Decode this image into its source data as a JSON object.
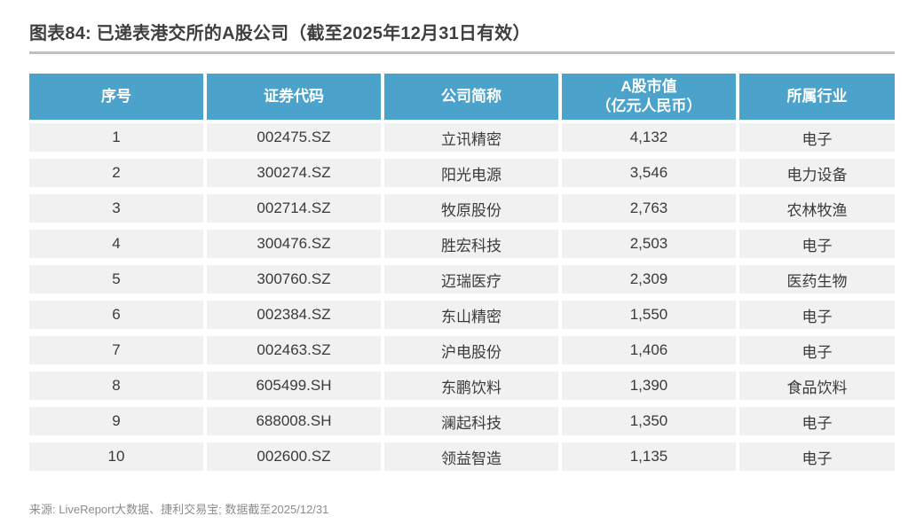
{
  "title": "图表84: 已递表港交所的A股公司（截至2025年12月31日有效）",
  "table": {
    "headers": [
      {
        "label": "序号"
      },
      {
        "label": "证券代码"
      },
      {
        "label": "公司简称"
      },
      {
        "label": "A股市值",
        "sublabel": "（亿元人民币）"
      },
      {
        "label": "所属行业"
      }
    ],
    "rows": [
      {
        "no": "1",
        "code": "002475.SZ",
        "name": "立讯精密",
        "mcap": "4,132",
        "industry": "电子"
      },
      {
        "no": "2",
        "code": "300274.SZ",
        "name": "阳光电源",
        "mcap": "3,546",
        "industry": "电力设备"
      },
      {
        "no": "3",
        "code": "002714.SZ",
        "name": "牧原股份",
        "mcap": "2,763",
        "industry": "农林牧渔"
      },
      {
        "no": "4",
        "code": "300476.SZ",
        "name": "胜宏科技",
        "mcap": "2,503",
        "industry": "电子"
      },
      {
        "no": "5",
        "code": "300760.SZ",
        "name": "迈瑞医疗",
        "mcap": "2,309",
        "industry": "医药生物"
      },
      {
        "no": "6",
        "code": "002384.SZ",
        "name": "东山精密",
        "mcap": "1,550",
        "industry": "电子"
      },
      {
        "no": "7",
        "code": "002463.SZ",
        "name": "沪电股份",
        "mcap": "1,406",
        "industry": "电子"
      },
      {
        "no": "8",
        "code": "605499.SH",
        "name": "东鹏饮料",
        "mcap": "1,390",
        "industry": "食品饮料"
      },
      {
        "no": "9",
        "code": "688008.SH",
        "name": "澜起科技",
        "mcap": "1,350",
        "industry": "电子"
      },
      {
        "no": "10",
        "code": "002600.SZ",
        "name": "领益智造",
        "mcap": "1,135",
        "industry": "电子"
      }
    ]
  },
  "source": "来源: LiveReport大数据、捷利交易宝; 数据截至2025/12/31",
  "colors": {
    "header_bg": "#4BA3CB",
    "header_text": "#FFFFFF",
    "row_bg": "#F1F1F1",
    "cell_text": "#3A3A3A",
    "title_text": "#3F3F3F",
    "rule": "#BFBFBF",
    "source_text": "#8C8C8C"
  },
  "chart_data": {
    "type": "table",
    "title": "图表84: 已递表港交所的A股公司（截至2025年12月31日有效）",
    "columns": [
      "序号",
      "证券代码",
      "公司简称",
      "A股市值（亿元人民币）",
      "所属行业"
    ],
    "rows": [
      [
        1,
        "002475.SZ",
        "立讯精密",
        4132,
        "电子"
      ],
      [
        2,
        "300274.SZ",
        "阳光电源",
        3546,
        "电力设备"
      ],
      [
        3,
        "002714.SZ",
        "牧原股份",
        2763,
        "农林牧渔"
      ],
      [
        4,
        "300476.SZ",
        "胜宏科技",
        2503,
        "电子"
      ],
      [
        5,
        "300760.SZ",
        "迈瑞医疗",
        2309,
        "医药生物"
      ],
      [
        6,
        "002384.SZ",
        "东山精密",
        1550,
        "电子"
      ],
      [
        7,
        "002463.SZ",
        "沪电股份",
        1406,
        "电子"
      ],
      [
        8,
        "605499.SH",
        "东鹏饮料",
        1390,
        "食品饮料"
      ],
      [
        9,
        "688008.SH",
        "澜起科技",
        1350,
        "电子"
      ],
      [
        10,
        "002600.SZ",
        "领益智造",
        1135,
        "电子"
      ]
    ],
    "source": "来源: LiveReport大数据、捷利交易宝; 数据截至2025/12/31"
  }
}
